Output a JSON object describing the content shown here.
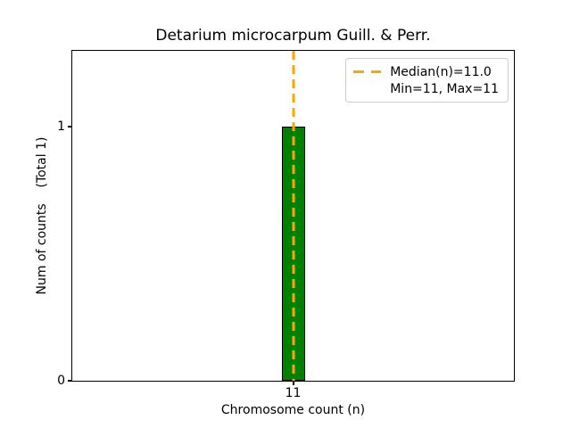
{
  "chart_data": {
    "type": "bar",
    "title": "Detarium microcarpum Guill. & Perr.",
    "xlabel": "Chromosome count (n)",
    "ylabel": "Num of counts    (Total 1)",
    "categories": [
      "11"
    ],
    "values": [
      1
    ],
    "total_counts": 1,
    "ylim": [
      0,
      1.3
    ],
    "yticks": [
      "0",
      "1"
    ],
    "median": 11.0,
    "min": 11,
    "max": 11,
    "legend_labels": [
      "Median(n)=11.0",
      "Min=11, Max=11"
    ],
    "legend_position": "upper right",
    "grid": false,
    "colors": {
      "bar_fill": "#008000",
      "bar_edge": "#000000",
      "median_line": "#FFA500",
      "axis": "#000000",
      "background": "#FFFFFF"
    }
  }
}
